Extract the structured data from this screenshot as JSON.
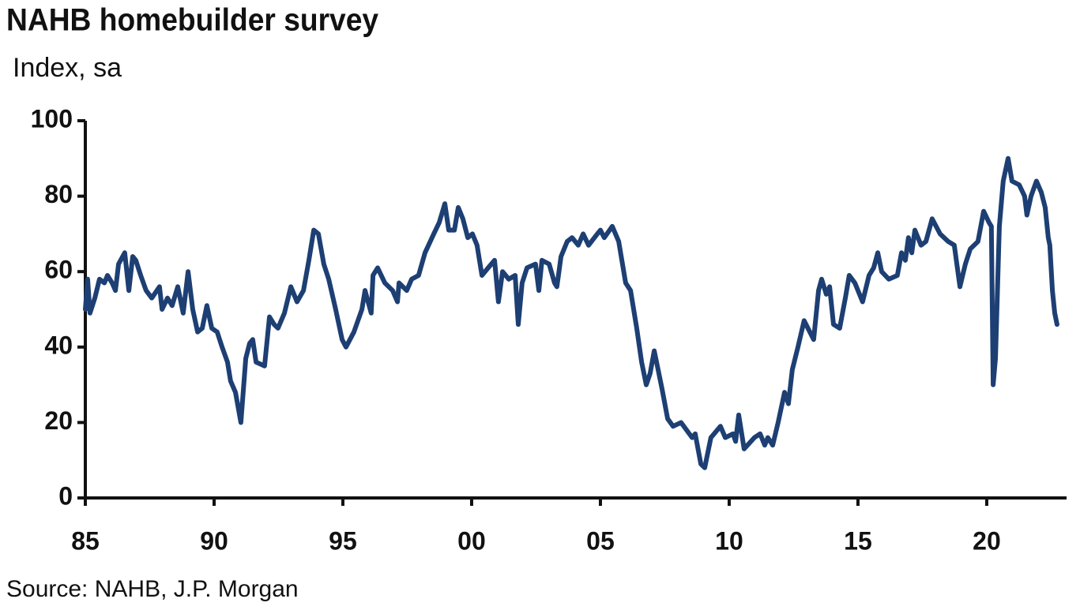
{
  "chart_data": {
    "type": "line",
    "title": "NAHB homebuilder survey",
    "subtitle": "Index, sa",
    "source": "Source: NAHB, J.P. Morgan",
    "xlim": [
      1985,
      2023.1
    ],
    "ylim": [
      0,
      100
    ],
    "xticks": [
      {
        "value": 1985,
        "label": "85"
      },
      {
        "value": 1990,
        "label": "90"
      },
      {
        "value": 1995,
        "label": "95"
      },
      {
        "value": 2000,
        "label": "00"
      },
      {
        "value": 2005,
        "label": "05"
      },
      {
        "value": 2010,
        "label": "10"
      },
      {
        "value": 2015,
        "label": "15"
      },
      {
        "value": 2020,
        "label": "20"
      }
    ],
    "yticks": [
      0,
      20,
      40,
      60,
      80,
      100
    ],
    "series": [
      {
        "color": "#1d3f73",
        "x": [
          1985.0,
          1985.09,
          1985.18,
          1985.37,
          1985.55,
          1985.74,
          1985.86,
          1986.04,
          1986.17,
          1986.29,
          1986.53,
          1986.69,
          1986.84,
          1986.96,
          1987.15,
          1987.36,
          1987.58,
          1987.88,
          1987.98,
          1988.19,
          1988.37,
          1988.59,
          1988.8,
          1988.99,
          1989.17,
          1989.36,
          1989.54,
          1989.72,
          1989.91,
          1990.12,
          1990.31,
          1990.52,
          1990.64,
          1990.83,
          1991.04,
          1991.23,
          1991.38,
          1991.5,
          1991.63,
          1991.96,
          1992.15,
          1992.33,
          1992.48,
          1992.73,
          1992.98,
          1993.22,
          1993.47,
          1993.68,
          1993.87,
          1994.05,
          1994.26,
          1994.45,
          1994.72,
          1994.97,
          1995.12,
          1995.43,
          1995.74,
          1995.86,
          1996.1,
          1996.17,
          1996.35,
          1996.63,
          1996.93,
          1997.12,
          1997.18,
          1997.48,
          1997.67,
          1997.94,
          1998.19,
          1998.53,
          1998.74,
          1998.96,
          1999.11,
          1999.33,
          1999.48,
          1999.66,
          1999.85,
          2000.03,
          2000.21,
          2000.4,
          2000.64,
          2000.89,
          2001.04,
          2001.2,
          2001.44,
          2001.69,
          2001.81,
          2001.96,
          2002.15,
          2002.48,
          2002.61,
          2002.73,
          2003.01,
          2003.22,
          2003.31,
          2003.47,
          2003.71,
          2003.9,
          2004.14,
          2004.33,
          2004.54,
          2004.88,
          2005.0,
          2005.15,
          2005.46,
          2005.71,
          2005.98,
          2006.17,
          2006.41,
          2006.6,
          2006.78,
          2006.93,
          2007.09,
          2007.39,
          2007.61,
          2007.82,
          2008.13,
          2008.56,
          2008.68,
          2008.9,
          2009.05,
          2009.29,
          2009.66,
          2009.85,
          2010.15,
          2010.25,
          2010.37,
          2010.58,
          2010.98,
          2011.2,
          2011.38,
          2011.5,
          2011.69,
          2011.9,
          2012.15,
          2012.3,
          2012.45,
          2012.67,
          2012.91,
          2013.28,
          2013.47,
          2013.59,
          2013.77,
          2013.9,
          2014.05,
          2014.29,
          2014.51,
          2014.66,
          2014.88,
          2015.06,
          2015.18,
          2015.43,
          2015.61,
          2015.77,
          2015.92,
          2016.2,
          2016.53,
          2016.69,
          2016.84,
          2016.96,
          2017.09,
          2017.21,
          2017.45,
          2017.64,
          2017.88,
          2018.19,
          2018.5,
          2018.74,
          2018.96,
          2019.17,
          2019.36,
          2019.66,
          2019.88,
          2020.09,
          2020.18,
          2020.25,
          2020.34,
          2020.49,
          2020.64,
          2020.83,
          2020.98,
          2021.26,
          2021.47,
          2021.56,
          2021.72,
          2021.93,
          2022.12,
          2022.27,
          2022.39,
          2022.45,
          2022.55,
          2022.64,
          2022.73
        ],
        "values": [
          50,
          58,
          49,
          53,
          58,
          57,
          59,
          57,
          55,
          62,
          65,
          55,
          64,
          63,
          59,
          55,
          53,
          56,
          50,
          53,
          51,
          56,
          49,
          60,
          50,
          44,
          45,
          51,
          45,
          44,
          40,
          36,
          31,
          28,
          20,
          37,
          41,
          42,
          36,
          35,
          48,
          46,
          45,
          49,
          56,
          52,
          55,
          63,
          71,
          70,
          62,
          58,
          50,
          42,
          40,
          44,
          50,
          55,
          49,
          59,
          61,
          57,
          55,
          52,
          57,
          55,
          58,
          59,
          65,
          70,
          73,
          78,
          71,
          71,
          77,
          74,
          69,
          70,
          67,
          59,
          61,
          63,
          52,
          60,
          58,
          59,
          46,
          57,
          61,
          62,
          55,
          63,
          62,
          57,
          56,
          64,
          68,
          69,
          67,
          70,
          67,
          70,
          71,
          69,
          72,
          68,
          57,
          55,
          45,
          36,
          30,
          33,
          39,
          29,
          21,
          19,
          20,
          16,
          17,
          9,
          8,
          16,
          19,
          16,
          17,
          15,
          22,
          13,
          16,
          17,
          14,
          16,
          14,
          20,
          28,
          25,
          34,
          40,
          47,
          42,
          55,
          58,
          54,
          56,
          46,
          45,
          53,
          59,
          57,
          54,
          52,
          59,
          61,
          65,
          60,
          58,
          59,
          65,
          63,
          69,
          65,
          71,
          67,
          68,
          74,
          70,
          68,
          67,
          56,
          62,
          66,
          68,
          76,
          73,
          72,
          30,
          37,
          72,
          84,
          90,
          84,
          83,
          80,
          75,
          80,
          84,
          81,
          77,
          69,
          67,
          55,
          49,
          46
        ]
      }
    ]
  }
}
